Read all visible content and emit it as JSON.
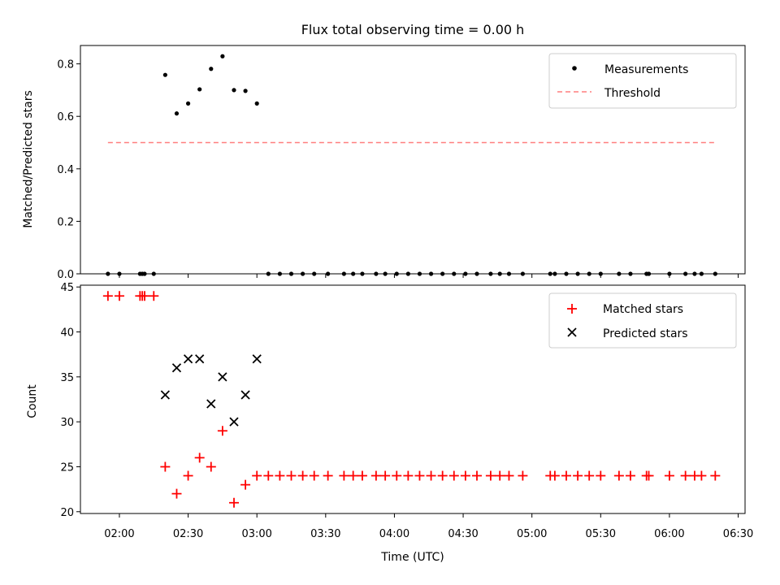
{
  "chart_data": [
    {
      "type": "scatter",
      "title": "Flux total observing time = 0.00 h",
      "xlabel": "",
      "ylabel": "Matched/Predicted stars",
      "ylim": [
        0.0,
        0.87
      ],
      "yticks": [
        0.0,
        0.2,
        0.4,
        0.6,
        0.8
      ],
      "legend_position": "top-right",
      "series": [
        {
          "name": "Measurements",
          "marker": "dot",
          "color": "#000000",
          "points": [
            [
              "01:55",
              0.0
            ],
            [
              "02:00",
              0.0
            ],
            [
              "02:09",
              0.0
            ],
            [
              "02:10",
              0.0
            ],
            [
              "02:11",
              0.0
            ],
            [
              "02:15",
              0.0
            ],
            [
              "02:20",
              0.758
            ],
            [
              "02:25",
              0.611
            ],
            [
              "02:30",
              0.649
            ],
            [
              "02:35",
              0.703
            ],
            [
              "02:40",
              0.781
            ],
            [
              "02:45",
              0.829
            ],
            [
              "02:50",
              0.7
            ],
            [
              "02:55",
              0.697
            ],
            [
              "03:00",
              0.649
            ],
            [
              "03:05",
              0.0
            ],
            [
              "03:10",
              0.0
            ],
            [
              "03:15",
              0.0
            ],
            [
              "03:20",
              0.0
            ],
            [
              "03:25",
              0.0
            ],
            [
              "03:31",
              0.0
            ],
            [
              "03:38",
              0.0
            ],
            [
              "03:42",
              0.0
            ],
            [
              "03:46",
              0.0
            ],
            [
              "03:52",
              0.0
            ],
            [
              "03:56",
              0.0
            ],
            [
              "04:01",
              0.0
            ],
            [
              "04:06",
              0.0
            ],
            [
              "04:11",
              0.0
            ],
            [
              "04:16",
              0.0
            ],
            [
              "04:21",
              0.0
            ],
            [
              "04:26",
              0.0
            ],
            [
              "04:31",
              0.0
            ],
            [
              "04:36",
              0.0
            ],
            [
              "04:42",
              0.0
            ],
            [
              "04:46",
              0.0
            ],
            [
              "04:50",
              0.0
            ],
            [
              "04:56",
              0.0
            ],
            [
              "05:08",
              0.0
            ],
            [
              "05:10",
              0.0
            ],
            [
              "05:15",
              0.0
            ],
            [
              "05:20",
              0.0
            ],
            [
              "05:25",
              0.0
            ],
            [
              "05:30",
              0.0
            ],
            [
              "05:38",
              0.0
            ],
            [
              "05:43",
              0.0
            ],
            [
              "05:50",
              0.0
            ],
            [
              "05:51",
              0.0
            ],
            [
              "06:00",
              0.0
            ],
            [
              "06:07",
              0.0
            ],
            [
              "06:11",
              0.0
            ],
            [
              "06:14",
              0.0
            ],
            [
              "06:20",
              0.0
            ]
          ]
        },
        {
          "name": "Threshold",
          "style": "dashed",
          "color": "#ff7f7f",
          "points": [
            [
              "01:55",
              0.5
            ],
            [
              "06:20",
              0.5
            ]
          ]
        }
      ]
    },
    {
      "type": "scatter",
      "title": "",
      "xlabel": "Time (UTC)",
      "ylabel": "Count",
      "ylim": [
        19.8,
        45.2
      ],
      "yticks": [
        20,
        25,
        30,
        35,
        40,
        45
      ],
      "xlim": [
        "01:43",
        "06:33"
      ],
      "xticks": [
        "02:00",
        "02:30",
        "03:00",
        "03:30",
        "04:00",
        "04:30",
        "05:00",
        "05:30",
        "06:00",
        "06:30"
      ],
      "legend_position": "top-right",
      "series": [
        {
          "name": "Matched stars",
          "marker": "plus",
          "color": "#ff0000",
          "points": [
            [
              "01:55",
              44
            ],
            [
              "02:00",
              44
            ],
            [
              "02:09",
              44
            ],
            [
              "02:10",
              44
            ],
            [
              "02:11",
              44
            ],
            [
              "02:15",
              44
            ],
            [
              "02:20",
              25
            ],
            [
              "02:25",
              22
            ],
            [
              "02:30",
              24
            ],
            [
              "02:35",
              26
            ],
            [
              "02:40",
              25
            ],
            [
              "02:45",
              29
            ],
            [
              "02:50",
              21
            ],
            [
              "02:55",
              23
            ],
            [
              "03:00",
              24
            ],
            [
              "03:05",
              24
            ],
            [
              "03:10",
              24
            ],
            [
              "03:15",
              24
            ],
            [
              "03:20",
              24
            ],
            [
              "03:25",
              24
            ],
            [
              "03:31",
              24
            ],
            [
              "03:38",
              24
            ],
            [
              "03:42",
              24
            ],
            [
              "03:46",
              24
            ],
            [
              "03:52",
              24
            ],
            [
              "03:56",
              24
            ],
            [
              "04:01",
              24
            ],
            [
              "04:06",
              24
            ],
            [
              "04:11",
              24
            ],
            [
              "04:16",
              24
            ],
            [
              "04:21",
              24
            ],
            [
              "04:26",
              24
            ],
            [
              "04:31",
              24
            ],
            [
              "04:36",
              24
            ],
            [
              "04:42",
              24
            ],
            [
              "04:46",
              24
            ],
            [
              "04:50",
              24
            ],
            [
              "04:56",
              24
            ],
            [
              "05:08",
              24
            ],
            [
              "05:10",
              24
            ],
            [
              "05:15",
              24
            ],
            [
              "05:20",
              24
            ],
            [
              "05:25",
              24
            ],
            [
              "05:30",
              24
            ],
            [
              "05:38",
              24
            ],
            [
              "05:43",
              24
            ],
            [
              "05:50",
              24
            ],
            [
              "05:51",
              24
            ],
            [
              "06:00",
              24
            ],
            [
              "06:07",
              24
            ],
            [
              "06:11",
              24
            ],
            [
              "06:14",
              24
            ],
            [
              "06:20",
              24
            ]
          ]
        },
        {
          "name": "Predicted stars",
          "marker": "x",
          "color": "#000000",
          "points": [
            [
              "02:20",
              33
            ],
            [
              "02:25",
              36
            ],
            [
              "02:30",
              37
            ],
            [
              "02:35",
              37
            ],
            [
              "02:40",
              32
            ],
            [
              "02:45",
              35
            ],
            [
              "02:50",
              30
            ],
            [
              "02:55",
              33
            ],
            [
              "03:00",
              37
            ]
          ]
        }
      ]
    }
  ]
}
